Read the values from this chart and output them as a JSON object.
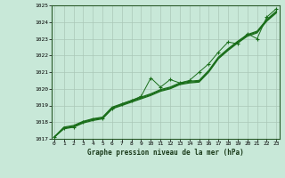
{
  "title": "Graphe pression niveau de la mer (hPa)",
  "x_labels": [
    0,
    1,
    2,
    3,
    4,
    5,
    6,
    7,
    8,
    9,
    10,
    11,
    12,
    13,
    14,
    15,
    16,
    17,
    18,
    19,
    20,
    21,
    22,
    23
  ],
  "ylim": [
    1017.0,
    1025.0
  ],
  "yticks": [
    1017,
    1018,
    1019,
    1020,
    1021,
    1022,
    1023,
    1024,
    1025
  ],
  "line_color": "#1a6e1a",
  "bg_color": "#c8e8d8",
  "grid_color": "#aac8b8",
  "smooth1": [
    1017.1,
    1017.7,
    1017.8,
    1018.05,
    1018.2,
    1018.3,
    1018.9,
    1019.1,
    1019.3,
    1019.5,
    1019.7,
    1019.95,
    1020.1,
    1020.35,
    1020.45,
    1020.5,
    1021.1,
    1021.9,
    1022.4,
    1022.85,
    1023.25,
    1023.45,
    1024.15,
    1024.65
  ],
  "smooth2": [
    1017.1,
    1017.65,
    1017.75,
    1018.0,
    1018.15,
    1018.25,
    1018.85,
    1019.05,
    1019.25,
    1019.45,
    1019.65,
    1019.9,
    1020.05,
    1020.3,
    1020.4,
    1020.45,
    1021.05,
    1021.85,
    1022.35,
    1022.8,
    1023.2,
    1023.4,
    1024.1,
    1024.6
  ],
  "smooth3": [
    1017.1,
    1017.6,
    1017.7,
    1017.95,
    1018.1,
    1018.2,
    1018.8,
    1019.0,
    1019.2,
    1019.4,
    1019.6,
    1019.85,
    1020.0,
    1020.25,
    1020.35,
    1020.4,
    1021.0,
    1021.8,
    1022.3,
    1022.75,
    1023.15,
    1023.35,
    1024.05,
    1024.55
  ],
  "marker_line": [
    1017.1,
    1017.65,
    1017.7,
    1018.0,
    1018.2,
    1018.25,
    1018.8,
    1019.1,
    1019.3,
    1019.55,
    1020.65,
    1020.1,
    1020.55,
    1020.35,
    1020.5,
    1021.0,
    1021.5,
    1022.2,
    1022.8,
    1022.7,
    1023.3,
    1023.0,
    1024.3,
    1024.8
  ]
}
